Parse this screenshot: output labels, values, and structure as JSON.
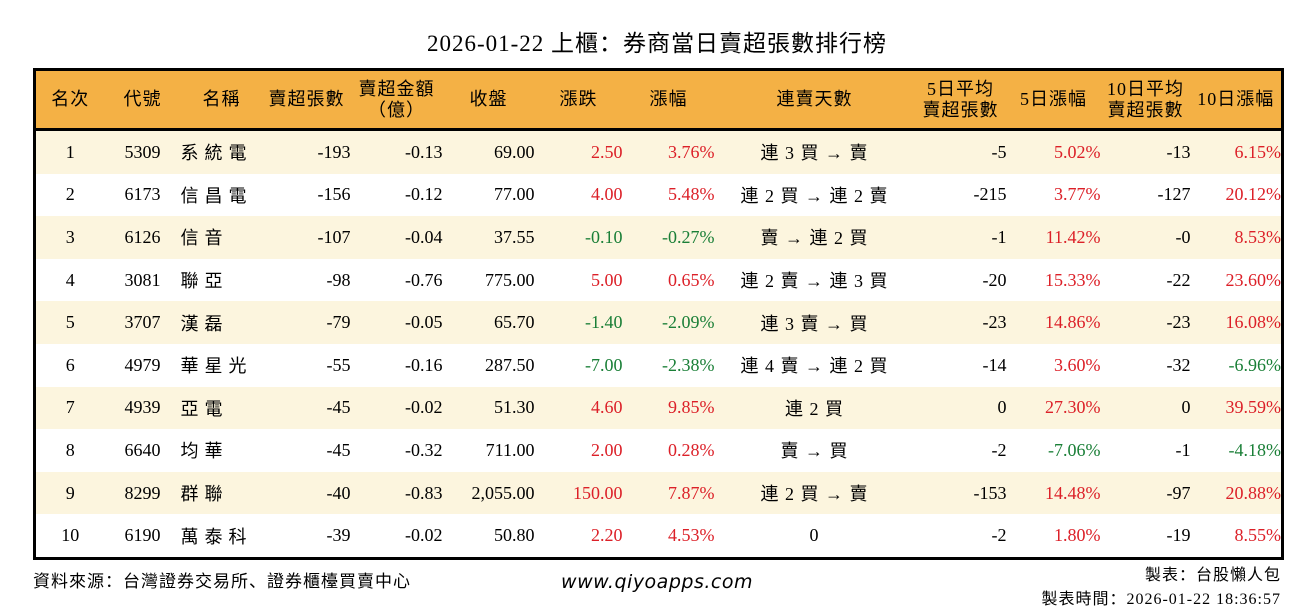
{
  "title": "2026-01-22 上櫃：券商當日賣超張數排行榜",
  "colors": {
    "up": "#dc2028",
    "down": "#1a7f37",
    "header_bg": "#f4b145",
    "row_alt": "#fcf5de",
    "border": "#000000"
  },
  "chart_data": {
    "type": "table",
    "title": "2026-01-22 上櫃：券商當日賣超張數排行榜",
    "columns": [
      {
        "key": "rank",
        "label": "名次",
        "align": "center"
      },
      {
        "key": "code",
        "label": "代號",
        "align": "center"
      },
      {
        "key": "name",
        "label": "名稱",
        "align": "left"
      },
      {
        "key": "net_sell",
        "label": "賣超張數",
        "align": "right"
      },
      {
        "key": "amount",
        "label": "賣超金額",
        "label2": "（億）",
        "align": "right"
      },
      {
        "key": "close",
        "label": "收盤",
        "align": "right"
      },
      {
        "key": "change",
        "label": "漲跌",
        "align": "right",
        "signed": true
      },
      {
        "key": "change_pct",
        "label": "漲幅",
        "align": "right",
        "signed": true
      },
      {
        "key": "streak",
        "label": "連賣天數",
        "align": "center"
      },
      {
        "key": "avg5",
        "label": "5日平均",
        "label2": "賣超張數",
        "align": "right"
      },
      {
        "key": "pct5",
        "label": "5日漲幅",
        "align": "right",
        "signed": true
      },
      {
        "key": "avg10",
        "label": "10日平均",
        "label2": "賣超張數",
        "align": "right"
      },
      {
        "key": "pct10",
        "label": "10日漲幅",
        "align": "right",
        "signed": true
      }
    ],
    "rows": [
      {
        "rank": "1",
        "code": "5309",
        "name": "系統電",
        "net_sell": "-193",
        "amount": "-0.13",
        "close": "69.00",
        "change": "2.50",
        "change_pct": "3.76%",
        "streak": "連 3 買 → 賣",
        "avg5": "-5",
        "pct5": "5.02%",
        "avg10": "-13",
        "pct10": "6.15%"
      },
      {
        "rank": "2",
        "code": "6173",
        "name": "信昌電",
        "net_sell": "-156",
        "amount": "-0.12",
        "close": "77.00",
        "change": "4.00",
        "change_pct": "5.48%",
        "streak": "連 2 買 → 連 2 賣",
        "avg5": "-215",
        "pct5": "3.77%",
        "avg10": "-127",
        "pct10": "20.12%"
      },
      {
        "rank": "3",
        "code": "6126",
        "name": "信音",
        "net_sell": "-107",
        "amount": "-0.04",
        "close": "37.55",
        "change": "-0.10",
        "change_pct": "-0.27%",
        "streak": "賣 → 連 2 買",
        "avg5": "-1",
        "pct5": "11.42%",
        "avg10": "-0",
        "pct10": "8.53%"
      },
      {
        "rank": "4",
        "code": "3081",
        "name": "聯亞",
        "net_sell": "-98",
        "amount": "-0.76",
        "close": "775.00",
        "change": "5.00",
        "change_pct": "0.65%",
        "streak": "連 2 賣 → 連 3 買",
        "avg5": "-20",
        "pct5": "15.33%",
        "avg10": "-22",
        "pct10": "23.60%"
      },
      {
        "rank": "5",
        "code": "3707",
        "name": "漢磊",
        "net_sell": "-79",
        "amount": "-0.05",
        "close": "65.70",
        "change": "-1.40",
        "change_pct": "-2.09%",
        "streak": "連 3 賣 → 買",
        "avg5": "-23",
        "pct5": "14.86%",
        "avg10": "-23",
        "pct10": "16.08%"
      },
      {
        "rank": "6",
        "code": "4979",
        "name": "華星光",
        "net_sell": "-55",
        "amount": "-0.16",
        "close": "287.50",
        "change": "-7.00",
        "change_pct": "-2.38%",
        "streak": "連 4 賣 → 連 2 買",
        "avg5": "-14",
        "pct5": "3.60%",
        "avg10": "-32",
        "pct10": "-6.96%"
      },
      {
        "rank": "7",
        "code": "4939",
        "name": "亞電",
        "net_sell": "-45",
        "amount": "-0.02",
        "close": "51.30",
        "change": "4.60",
        "change_pct": "9.85%",
        "streak": "連 2 買",
        "avg5": "0",
        "pct5": "27.30%",
        "avg10": "0",
        "pct10": "39.59%"
      },
      {
        "rank": "8",
        "code": "6640",
        "name": "均華",
        "net_sell": "-45",
        "amount": "-0.32",
        "close": "711.00",
        "change": "2.00",
        "change_pct": "0.28%",
        "streak": "賣 → 買",
        "avg5": "-2",
        "pct5": "-7.06%",
        "avg10": "-1",
        "pct10": "-4.18%"
      },
      {
        "rank": "9",
        "code": "8299",
        "name": "群聯",
        "net_sell": "-40",
        "amount": "-0.83",
        "close": "2,055.00",
        "change": "150.00",
        "change_pct": "7.87%",
        "streak": "連 2 買 → 賣",
        "avg5": "-153",
        "pct5": "14.48%",
        "avg10": "-97",
        "pct10": "20.88%"
      },
      {
        "rank": "10",
        "code": "6190",
        "name": "萬泰科",
        "net_sell": "-39",
        "amount": "-0.02",
        "close": "50.80",
        "change": "2.20",
        "change_pct": "4.53%",
        "streak": "0",
        "avg5": "-2",
        "pct5": "1.80%",
        "avg10": "-19",
        "pct10": "8.55%"
      }
    ]
  },
  "footer": {
    "source": "資料來源：台灣證券交易所、證券櫃檯買賣中心",
    "website": "www.qiyoapps.com",
    "author": "製表：台股懶人包",
    "timestamp": "製表時間：2026-01-22 18:36:57"
  }
}
